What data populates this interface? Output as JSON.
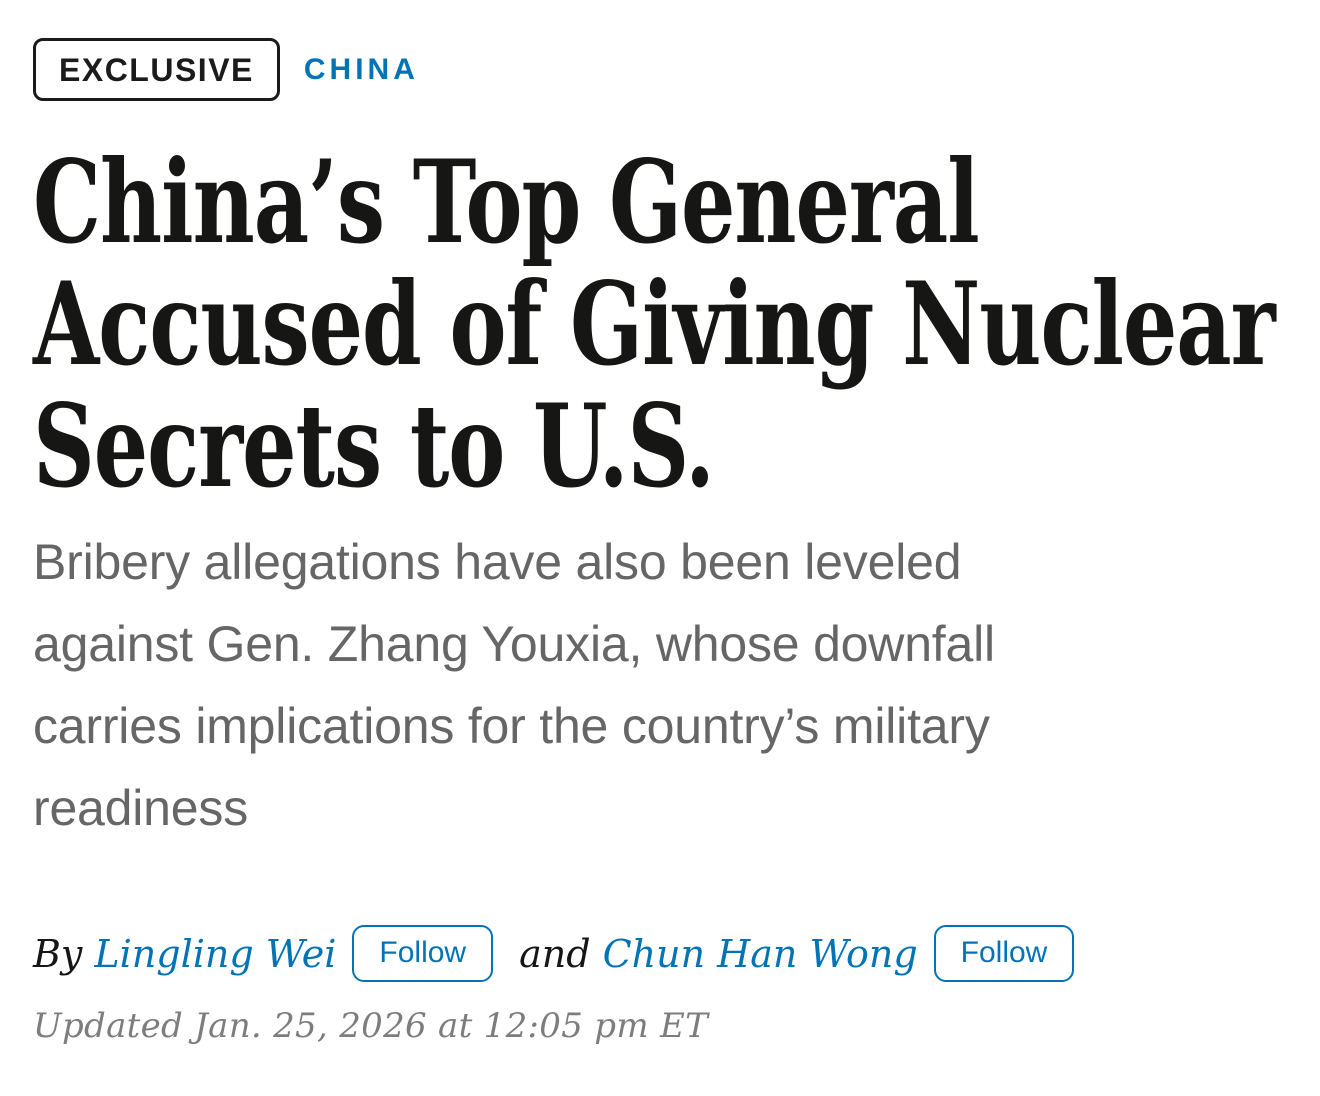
{
  "eyebrow": {
    "badge_label": "EXCLUSIVE",
    "section_label": "CHINA"
  },
  "headline": "China’s Top General\nAccused of Giving Nuclear\nSecrets to U.S.",
  "subheadline": "Bribery allegations have also been leveled\nagainst Gen. Zhang Youxia, whose downfall\ncarries implications for the country’s military\nreadiness",
  "byline": {
    "prefix": "By",
    "conjunction": "and",
    "authors": [
      {
        "name": "Lingling Wei",
        "follow_label": "Follow"
      },
      {
        "name": "Chun Han Wong",
        "follow_label": "Follow"
      }
    ]
  },
  "timestamp": "Updated Jan. 25, 2026 at 12:05 pm ET",
  "colors": {
    "accent_blue": "#0274b6",
    "headline_ink": "#161615",
    "subhead_gray": "#666666",
    "timestamp_gray": "#7d7d7d",
    "badge_ink": "#1b1b1b"
  }
}
